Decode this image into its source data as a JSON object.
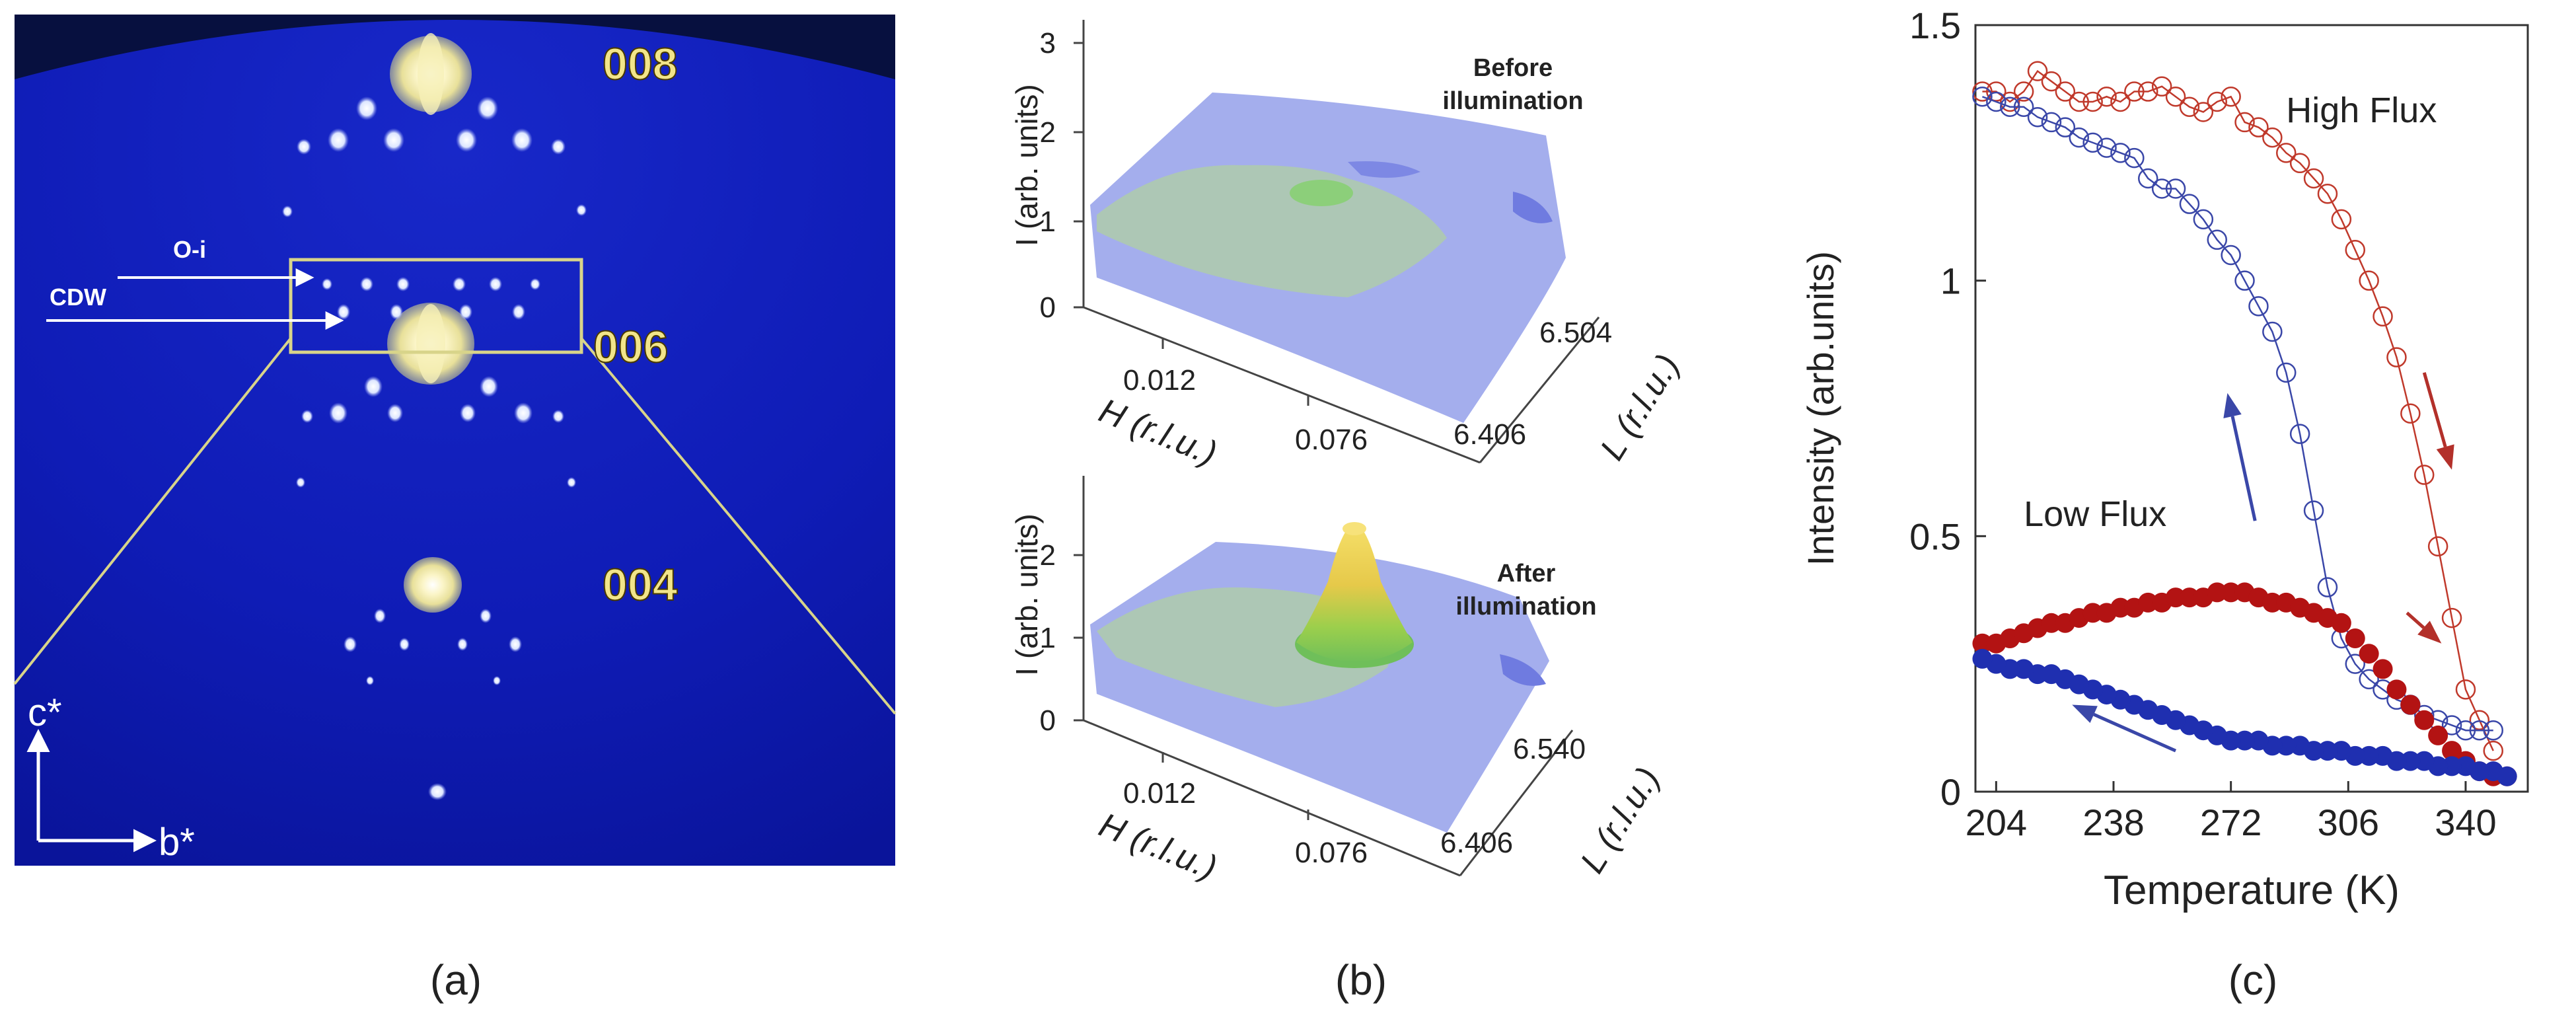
{
  "panel_a": {
    "caption": "(a)",
    "reflections": [
      "008",
      "006",
      "004"
    ],
    "labels": {
      "oi": "O-i",
      "cdw": "CDW",
      "cstar": "c*",
      "bstar": "b*"
    },
    "colors": {
      "background": "#0c1ab8",
      "highlight": "#f2e58a",
      "spot": "#e8eeff"
    }
  },
  "panel_b": {
    "caption": "(b)",
    "top": {
      "title_line1": "Before",
      "title_line2": "illumination",
      "zlabel": "I (arb. units)",
      "z_ticks": [
        "0",
        "1",
        "2",
        "3"
      ],
      "xlabel": "H (r.l.u.)",
      "x_ticks": [
        "0.012",
        "0.076"
      ],
      "ylabel": "L (r.l.u.)",
      "y_ticks": [
        "6.504",
        "6.406"
      ]
    },
    "bottom": {
      "title_line1": "After",
      "title_line2": "illumination",
      "zlabel": "I (arb. units)",
      "z_ticks": [
        "0",
        "1",
        "2"
      ],
      "xlabel": "H (r.l.u.)",
      "x_ticks": [
        "0.012",
        "0.076"
      ],
      "ylabel": "L (r.l.u.)",
      "y_ticks": [
        "6.540",
        "6.406"
      ],
      "peak_height": 2.1
    },
    "colors": {
      "surface_blue": "#9fa9ec",
      "surface_green": "#a9c8b4",
      "peak_yellow": "#f5d84a"
    }
  },
  "panel_c": {
    "caption": "(c)",
    "chart_data": {
      "type": "line",
      "xlabel": "Temperature (K)",
      "ylabel": "Intensity (arb.units)",
      "xlim": [
        198,
        358
      ],
      "ylim": [
        0,
        1.5
      ],
      "x_ticks": [
        204,
        238,
        272,
        306,
        340
      ],
      "y_ticks": [
        {
          "value": 0,
          "label": "0"
        },
        {
          "value": 0.5,
          "label": "0.5"
        },
        {
          "value": 1,
          "label": "1"
        },
        {
          "value": 1.5,
          "label": "1.5"
        }
      ],
      "annotations": [
        {
          "text": "High Flux",
          "x": 288,
          "y": 1.31
        },
        {
          "text": "Low Flux",
          "x": 212,
          "y": 0.52
        }
      ],
      "series": [
        {
          "name": "High Flux heating",
          "color": "#c0392b",
          "marker": "open",
          "x": [
            200,
            204,
            208,
            212,
            216,
            220,
            224,
            228,
            232,
            236,
            240,
            244,
            248,
            252,
            256,
            260,
            264,
            268,
            272,
            276,
            280,
            284,
            288,
            292,
            296,
            300,
            304,
            308,
            312,
            316,
            320,
            324,
            328,
            332,
            336,
            340,
            344,
            348
          ],
          "y": [
            1.37,
            1.37,
            1.35,
            1.37,
            1.41,
            1.39,
            1.37,
            1.35,
            1.35,
            1.36,
            1.35,
            1.37,
            1.37,
            1.38,
            1.36,
            1.34,
            1.33,
            1.35,
            1.36,
            1.31,
            1.3,
            1.28,
            1.25,
            1.23,
            1.2,
            1.17,
            1.12,
            1.06,
            1.0,
            0.93,
            0.85,
            0.74,
            0.62,
            0.48,
            0.34,
            0.2,
            0.14,
            0.08
          ]
        },
        {
          "name": "High Flux cooling",
          "color": "#3a47a8",
          "marker": "open",
          "x": [
            348,
            344,
            340,
            336,
            332,
            328,
            324,
            320,
            316,
            312,
            308,
            304,
            300,
            296,
            292,
            288,
            284,
            280,
            276,
            272,
            268,
            264,
            260,
            256,
            252,
            248,
            244,
            240,
            236,
            232,
            228,
            224,
            220,
            216,
            212,
            208,
            204,
            200
          ],
          "y": [
            0.12,
            0.12,
            0.12,
            0.13,
            0.14,
            0.15,
            0.17,
            0.18,
            0.2,
            0.22,
            0.25,
            0.3,
            0.4,
            0.55,
            0.7,
            0.82,
            0.9,
            0.95,
            1.0,
            1.05,
            1.08,
            1.12,
            1.15,
            1.18,
            1.18,
            1.2,
            1.24,
            1.25,
            1.26,
            1.27,
            1.28,
            1.3,
            1.31,
            1.32,
            1.34,
            1.34,
            1.35,
            1.36
          ]
        },
        {
          "name": "Low Flux heating",
          "color": "#b31313",
          "marker": "filled",
          "x": [
            200,
            204,
            208,
            212,
            216,
            220,
            224,
            228,
            232,
            236,
            240,
            244,
            248,
            252,
            256,
            260,
            264,
            268,
            272,
            276,
            280,
            284,
            288,
            292,
            296,
            300,
            304,
            308,
            312,
            316,
            320,
            324,
            328,
            332,
            336,
            340,
            344,
            348,
            352
          ],
          "y": [
            0.29,
            0.29,
            0.3,
            0.31,
            0.32,
            0.33,
            0.33,
            0.34,
            0.35,
            0.35,
            0.36,
            0.36,
            0.37,
            0.37,
            0.38,
            0.38,
            0.38,
            0.39,
            0.39,
            0.39,
            0.38,
            0.37,
            0.37,
            0.36,
            0.35,
            0.34,
            0.33,
            0.3,
            0.27,
            0.24,
            0.2,
            0.17,
            0.14,
            0.11,
            0.08,
            0.06,
            0.04,
            0.03,
            0.03
          ]
        },
        {
          "name": "Low Flux cooling",
          "color": "#1f2fb0",
          "marker": "filled",
          "x": [
            352,
            348,
            344,
            340,
            336,
            332,
            328,
            324,
            320,
            316,
            312,
            308,
            304,
            300,
            296,
            292,
            288,
            284,
            280,
            276,
            272,
            268,
            264,
            260,
            256,
            252,
            248,
            244,
            240,
            236,
            232,
            228,
            224,
            220,
            216,
            212,
            208,
            204,
            200
          ],
          "y": [
            0.03,
            0.04,
            0.04,
            0.05,
            0.05,
            0.05,
            0.06,
            0.06,
            0.06,
            0.07,
            0.07,
            0.07,
            0.08,
            0.08,
            0.08,
            0.09,
            0.09,
            0.09,
            0.1,
            0.1,
            0.1,
            0.11,
            0.12,
            0.13,
            0.14,
            0.15,
            0.16,
            0.17,
            0.18,
            0.19,
            0.2,
            0.21,
            0.22,
            0.23,
            0.23,
            0.24,
            0.24,
            0.25,
            0.26
          ]
        }
      ],
      "arrows": [
        {
          "color": "#b3302a",
          "from": [
            328,
            0.82
          ],
          "to": [
            336,
            0.63
          ]
        },
        {
          "color": "#b3302a",
          "from": [
            323,
            0.35
          ],
          "to": [
            333,
            0.29
          ]
        },
        {
          "color": "#3a47a8",
          "from": [
            279,
            0.53
          ],
          "to": [
            271,
            0.78
          ]
        },
        {
          "color": "#3a47a8",
          "from": [
            256,
            0.08
          ],
          "to": [
            226,
            0.17
          ]
        }
      ]
    }
  }
}
